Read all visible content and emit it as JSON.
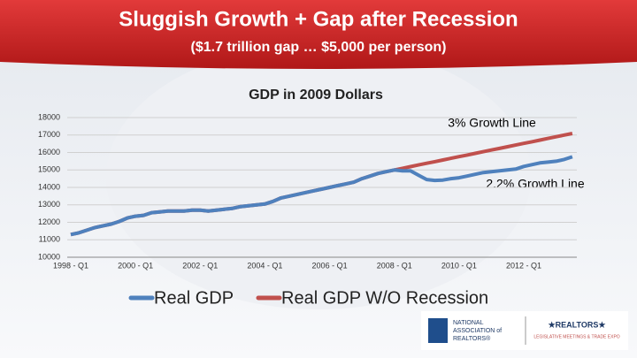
{
  "slide": {
    "title": "Sluggish Growth + Gap after Recession",
    "subtitle": "($1.7 trillion gap … $5,000 per person)",
    "logo_left": [
      "NATIONAL",
      "ASSOCIATION of",
      "REALTORS®"
    ],
    "logo_right": [
      "★REALTORS★",
      "LEGISLATIVE MEETINGS & TRADE EXPO"
    ]
  },
  "chart_data": {
    "type": "line",
    "title": "GDP in 2009 Dollars",
    "categories": [
      "1998 - Q1",
      null,
      null,
      null,
      null,
      null,
      null,
      null,
      "2000 - Q1",
      null,
      null,
      null,
      null,
      null,
      null,
      null,
      "2002 - Q1",
      null,
      null,
      null,
      null,
      null,
      null,
      null,
      "2004 - Q1",
      null,
      null,
      null,
      null,
      null,
      null,
      null,
      "2006 - Q1",
      null,
      null,
      null,
      null,
      null,
      null,
      null,
      "2008 - Q1",
      null,
      null,
      null,
      null,
      null,
      null,
      null,
      "2010 - Q1",
      null,
      null,
      null,
      null,
      null,
      null,
      null,
      "2012 - Q1",
      null,
      null,
      null,
      null,
      null,
      null
    ],
    "series": [
      {
        "name": "Real GDP",
        "color": "#4f81bd",
        "values": [
          11300,
          11400,
          11550,
          11700,
          11800,
          11900,
          12050,
          12250,
          12350,
          12400,
          12550,
          12600,
          12650,
          12650,
          12650,
          12700,
          12700,
          12650,
          12700,
          12750,
          12800,
          12900,
          12950,
          13000,
          13050,
          13200,
          13400,
          13500,
          13600,
          13700,
          13800,
          13900,
          14000,
          14100,
          14200,
          14300,
          14500,
          14650,
          14800,
          14900,
          15000,
          14950,
          14950,
          14700,
          14450,
          14400,
          14420,
          14500,
          14550,
          14650,
          14750,
          14850,
          14900,
          14950,
          15000,
          15050,
          15200,
          15300,
          15400,
          15450,
          15500,
          15600,
          15750
        ]
      },
      {
        "name": "Real GDP W/O Recession",
        "color": "#c0504d",
        "values": [
          11300,
          11400,
          11550,
          11700,
          11800,
          11900,
          12050,
          12250,
          12350,
          12400,
          12550,
          12600,
          12650,
          12650,
          12650,
          12700,
          12700,
          12650,
          12700,
          12750,
          12800,
          12900,
          12950,
          13000,
          13050,
          13200,
          13400,
          13500,
          13600,
          13700,
          13800,
          13900,
          14000,
          14100,
          14200,
          14300,
          14500,
          14650,
          14800,
          14900,
          15000,
          15095,
          15190,
          15285,
          15380,
          15475,
          15570,
          15665,
          15760,
          15855,
          15950,
          16045,
          16140,
          16235,
          16330,
          16425,
          16520,
          16615,
          16710,
          16805,
          16900,
          16995,
          17090
        ]
      }
    ],
    "annotations": [
      "3% Growth Line",
      "2.2% Growth Line"
    ],
    "ylim": [
      10000,
      18000
    ],
    "yticks": [
      10000,
      11000,
      12000,
      13000,
      14000,
      15000,
      16000,
      17000,
      18000
    ],
    "grid": true,
    "legend": "bottom"
  }
}
